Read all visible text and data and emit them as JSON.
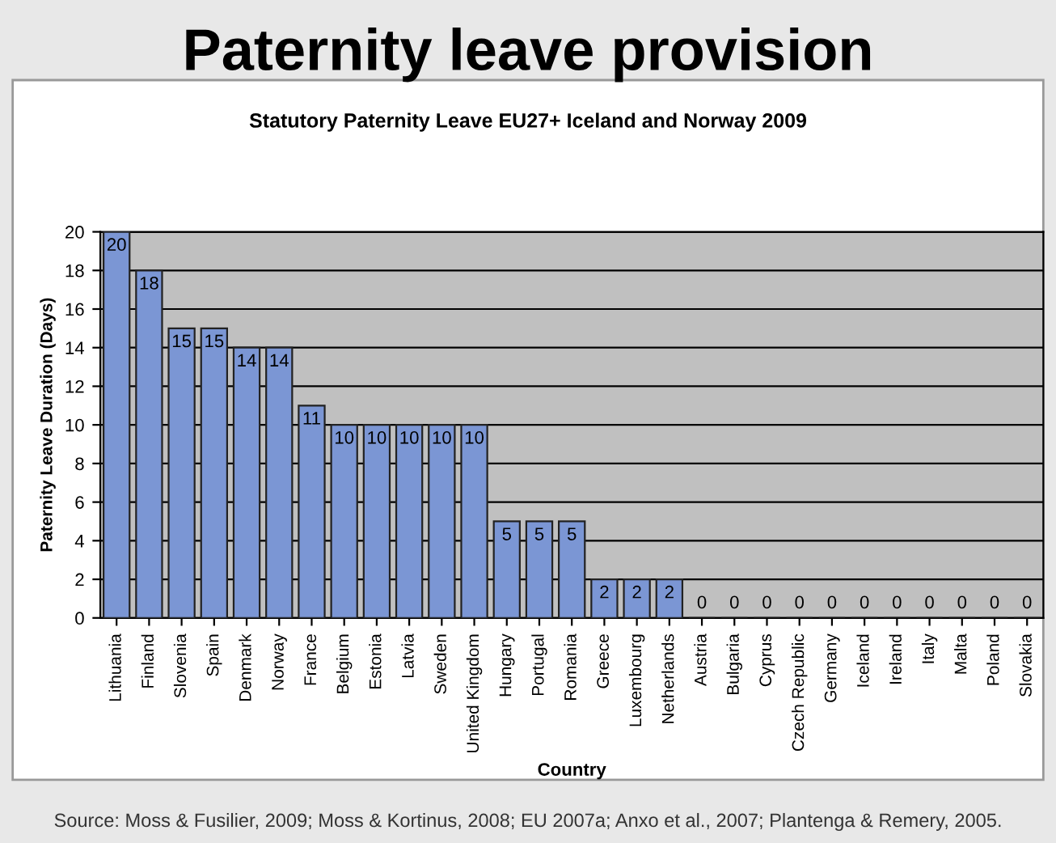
{
  "chart_data": {
    "type": "bar",
    "title": "Paternity leave provision",
    "subtitle": "Statutory Paternity Leave EU27+ Iceland and Norway 2009",
    "xlabel": "Country",
    "ylabel": "Paternity Leave Duration (Days)",
    "categories": [
      "Lithuania",
      "Finland",
      "Slovenia",
      "Spain",
      "Denmark",
      "Norway",
      "France",
      "Belgium",
      "Estonia",
      "Latvia",
      "Sweden",
      "United Kingdom",
      "Hungary",
      "Portugal",
      "Romania",
      "Greece",
      "Luxembourg",
      "Netherlands",
      "Austria",
      "Bulgaria",
      "Cyprus",
      "Czech Republic",
      "Germany",
      "Iceland",
      "Ireland",
      "Italy",
      "Malta",
      "Poland",
      "Slovakia"
    ],
    "values": [
      20,
      18,
      15,
      15,
      14,
      14,
      11,
      10,
      10,
      10,
      10,
      10,
      5,
      5,
      5,
      2,
      2,
      2,
      0,
      0,
      0,
      0,
      0,
      0,
      0,
      0,
      0,
      0,
      0
    ],
    "color": "#7b96d4",
    "ylim": [
      0,
      20
    ],
    "yticks": [
      0,
      2,
      4,
      6,
      8,
      10,
      12,
      14,
      16,
      18,
      20
    ],
    "grid": "y",
    "data_labels": true,
    "annotations": [
      "Source: Moss & Fusilier, 2009; Moss & Kortinus, 2008; EU 2007a; Anxo et al., 2007; Plantenga & Remery, 2005."
    ]
  }
}
